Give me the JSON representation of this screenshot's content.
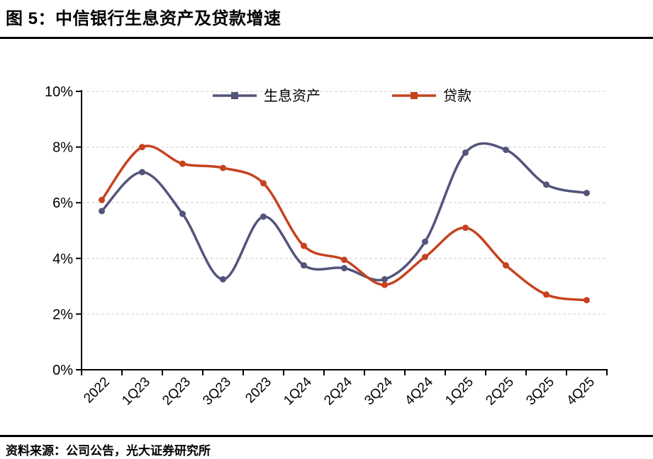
{
  "header": {
    "title": "图 5：中信银行生息资产及贷款增速"
  },
  "footer": {
    "source": "资料来源：公司公告，光大证券研究所"
  },
  "colors": {
    "assets_series": "#52547A",
    "loans_series": "#C5431F",
    "grid": "#D9D9D9",
    "axis": "#000000",
    "text": "#000000"
  },
  "chart_data": {
    "type": "line",
    "title": "图 5：中信银行生息资产及贷款增速",
    "categories": [
      "2022",
      "1Q23",
      "2Q23",
      "3Q23",
      "2023",
      "1Q24",
      "2Q24",
      "3Q24",
      "4Q24",
      "1Q25",
      "2Q25",
      "3Q25",
      "4Q25"
    ],
    "series": [
      {
        "name": "生息资产",
        "color": "#52547A",
        "values": [
          5.7,
          7.1,
          5.6,
          3.25,
          5.5,
          3.75,
          3.65,
          3.25,
          4.6,
          7.8,
          7.9,
          6.65,
          6.35
        ]
      },
      {
        "name": "贷款",
        "color": "#C5431F",
        "values": [
          6.1,
          8.0,
          7.4,
          7.25,
          6.7,
          4.45,
          3.95,
          3.05,
          4.05,
          5.1,
          3.75,
          2.7,
          2.5
        ]
      }
    ],
    "xlabel": "",
    "ylabel": "",
    "ylim": [
      0,
      10
    ],
    "ytick_step": 2,
    "yticks": [
      "0%",
      "2%",
      "4%",
      "6%",
      "8%",
      "10%"
    ],
    "grid": "horizontal-dashed",
    "legend_position": "top-center",
    "marker": "circle",
    "smooth_lines": true
  }
}
